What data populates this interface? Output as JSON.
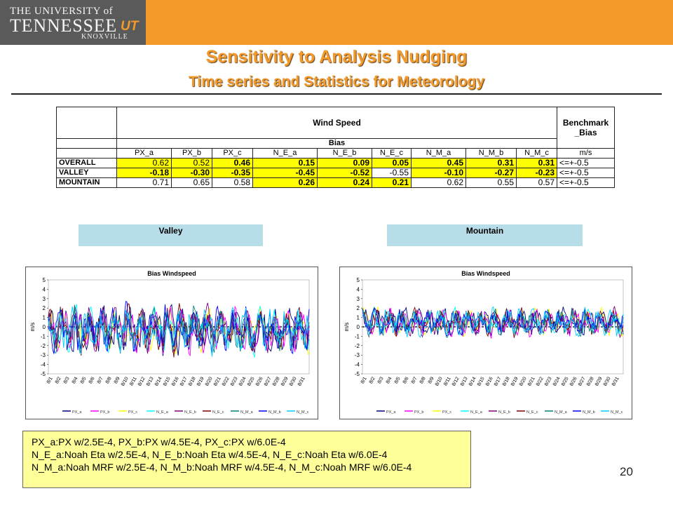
{
  "header": {
    "logo_line1": "THE UNIVERSITY of",
    "logo_line2": "TENNESSEE",
    "logo_ut": "UT",
    "logo_line3": "KNOXVILLE",
    "brand_color": "#f39a2b"
  },
  "title": "Sensitivity to Analysis Nudging",
  "subtitle": "Time series and Statistics for Meteorology",
  "table": {
    "group_title": "Wind Speed",
    "bench_title_1": "Benchmark",
    "bench_title_2": "_Bias",
    "bias_title": "Bias",
    "unit": "m/s",
    "columns": [
      "PX_a",
      "PX_b",
      "PX_c",
      "N_E_a",
      "N_E_b",
      "N_E_c",
      "N_M_a",
      "N_M_b",
      "N_M_c"
    ],
    "rows": [
      {
        "label": "OVERALL",
        "values": [
          "0.62",
          "0.52",
          "0.46",
          "0.15",
          "0.09",
          "0.05",
          "0.45",
          "0.31",
          "0.31"
        ],
        "bench": "<=+-0.5"
      },
      {
        "label": "VALLEY",
        "values": [
          "-0.18",
          "-0.30",
          "-0.35",
          "-0.45",
          "-0.52",
          "-0.55",
          "-0.10",
          "-0.27",
          "-0.23"
        ],
        "bench": "<=+-0.5"
      },
      {
        "label": "MOUNTAIN",
        "values": [
          "0.71",
          "0.65",
          "0.58",
          "0.26",
          "0.24",
          "0.21",
          "0.62",
          "0.55",
          "0.57"
        ],
        "bench": "<=+-0.5"
      }
    ],
    "highlight_color": "#ffff00"
  },
  "regions": {
    "valley": "Valley",
    "mountain": "Mountain",
    "region_color": "#b7dde8"
  },
  "chart_data": [
    {
      "type": "line",
      "title": "Bias Windspeed",
      "ylabel": "m/s",
      "ylim": [
        -5,
        5
      ],
      "yticks": [
        "5",
        "4",
        "3",
        "2",
        "1",
        "0",
        "-1",
        "-2",
        "-3",
        "-4",
        "-5"
      ],
      "categories": [
        "8/1",
        "8/2",
        "8/3",
        "8/4",
        "8/5",
        "8/6",
        "8/7",
        "8/8",
        "8/9",
        "8/10",
        "8/11",
        "8/12",
        "8/13",
        "8/14",
        "8/15",
        "8/16",
        "8/17",
        "8/18",
        "8/19",
        "8/20",
        "8/21",
        "8/22",
        "8/23",
        "8/24",
        "8/25",
        "8/26",
        "8/27",
        "8/28",
        "8/29",
        "8/30",
        "8/31"
      ],
      "legend": [
        "PX_a",
        "PX_b",
        "PX_c",
        "N_E_a",
        "N_E_b",
        "N_E_c",
        "N_M_a",
        "N_M_b",
        "N_M_c"
      ],
      "series_colors": [
        "#000080",
        "#ff00ff",
        "#ffff00",
        "#00ffff",
        "#800080",
        "#800000",
        "#008080",
        "#0000ff",
        "#00ccff"
      ],
      "amplitude": 2.2,
      "offset": -0.3,
      "seed": 7
    },
    {
      "type": "line",
      "title": "Bias Windspeed",
      "ylabel": "m/s",
      "ylim": [
        -5,
        5
      ],
      "yticks": [
        "5",
        "4",
        "3",
        "2",
        "1",
        "0",
        "-1",
        "-2",
        "-3",
        "-4",
        "-5"
      ],
      "categories": [
        "8/1",
        "8/2",
        "8/3",
        "8/4",
        "8/5",
        "8/6",
        "8/7",
        "8/8",
        "8/9",
        "8/10",
        "8/11",
        "8/12",
        "8/13",
        "8/14",
        "8/15",
        "8/16",
        "8/17",
        "8/18",
        "8/19",
        "8/20",
        "8/21",
        "8/22",
        "8/23",
        "8/24",
        "8/25",
        "8/26",
        "8/27",
        "8/28",
        "8/29",
        "8/30",
        "8/31"
      ],
      "legend": [
        "PX_a",
        "PX_b",
        "PX_c",
        "N_E_a",
        "N_E_b",
        "N_E_c",
        "N_M_a",
        "N_M_b",
        "N_M_c"
      ],
      "series_colors": [
        "#000080",
        "#ff00ff",
        "#ffff00",
        "#00ffff",
        "#800080",
        "#800000",
        "#008080",
        "#0000ff",
        "#00ccff"
      ],
      "amplitude": 1.3,
      "offset": 0.5,
      "seed": 19
    }
  ],
  "legend_text": [
    "PX_a:PX w/2.5E-4,  PX_b:PX w/4.5E-4, PX_c:PX w/6.0E-4",
    "N_E_a:Noah Eta w/2.5E-4, N_E_b:Noah Eta w/4.5E-4, N_E_c:Noah Eta w/6.0E-4",
    "N_M_a:Noah MRF w/2.5E-4, N_M_b:Noah MRF w/4.5E-4, N_M_c:Noah MRF w/6.0E-4"
  ],
  "page_number": "20"
}
